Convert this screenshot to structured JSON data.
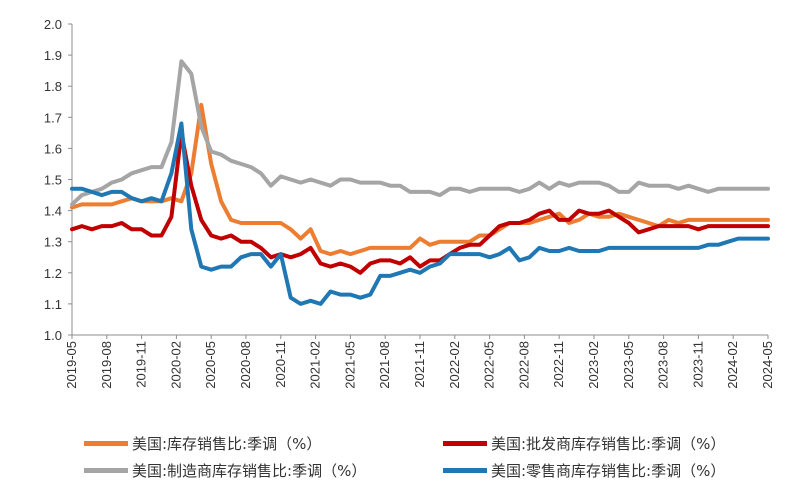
{
  "chart_data": {
    "type": "line",
    "ylim": [
      1.0,
      2.0
    ],
    "yticks": [
      "2.0",
      "1.9",
      "1.8",
      "1.7",
      "1.6",
      "1.5",
      "1.4",
      "1.3",
      "1.2",
      "1.1",
      "1.0"
    ],
    "x_start": "2019-05",
    "x_end": "2024-05",
    "xticks": [
      "2019-05",
      "2019-08",
      "2019-11",
      "2020-02",
      "2020-05",
      "2020-08",
      "2020-11",
      "2021-02",
      "2021-05",
      "2021-08",
      "2021-11",
      "2022-02",
      "2022-05",
      "2022-08",
      "2022-11",
      "2023-02",
      "2023-05",
      "2023-08",
      "2023-11",
      "2024-02",
      "2024-05"
    ],
    "grid": false,
    "legend_position": "bottom",
    "series": [
      {
        "name": "美国:库存销售比:季调（%）",
        "color": "#ED7D31",
        "values": [
          1.41,
          1.42,
          1.42,
          1.42,
          1.42,
          1.43,
          1.44,
          1.43,
          1.43,
          1.43,
          1.44,
          1.43,
          1.52,
          1.74,
          1.55,
          1.43,
          1.37,
          1.36,
          1.36,
          1.36,
          1.36,
          1.36,
          1.34,
          1.31,
          1.34,
          1.27,
          1.26,
          1.27,
          1.26,
          1.27,
          1.28,
          1.28,
          1.28,
          1.28,
          1.28,
          1.31,
          1.29,
          1.3,
          1.3,
          1.3,
          1.3,
          1.32,
          1.32,
          1.34,
          1.36,
          1.36,
          1.36,
          1.37,
          1.38,
          1.39,
          1.36,
          1.37,
          1.39,
          1.38,
          1.38,
          1.39,
          1.38,
          1.37,
          1.36,
          1.35,
          1.37,
          1.36,
          1.37,
          1.37,
          1.37,
          1.37,
          1.37,
          1.37,
          1.37,
          1.37,
          1.37
        ]
      },
      {
        "name": "美国:批发商库存销售比:季调（%）",
        "color": "#C00000",
        "values": [
          1.34,
          1.35,
          1.34,
          1.35,
          1.35,
          1.36,
          1.34,
          1.34,
          1.32,
          1.32,
          1.38,
          1.65,
          1.48,
          1.37,
          1.32,
          1.31,
          1.32,
          1.3,
          1.3,
          1.28,
          1.25,
          1.26,
          1.25,
          1.26,
          1.28,
          1.23,
          1.22,
          1.23,
          1.22,
          1.2,
          1.23,
          1.24,
          1.24,
          1.23,
          1.25,
          1.22,
          1.24,
          1.24,
          1.26,
          1.28,
          1.29,
          1.29,
          1.32,
          1.35,
          1.36,
          1.36,
          1.37,
          1.39,
          1.4,
          1.37,
          1.37,
          1.4,
          1.39,
          1.39,
          1.4,
          1.38,
          1.36,
          1.33,
          1.34,
          1.35,
          1.35,
          1.35,
          1.35,
          1.34,
          1.35,
          1.35,
          1.35,
          1.35,
          1.35,
          1.35,
          1.35
        ]
      },
      {
        "name": "美国:制造商库存销售比:季调（%）",
        "color": "#A5A5A5",
        "values": [
          1.42,
          1.45,
          1.46,
          1.47,
          1.49,
          1.5,
          1.52,
          1.53,
          1.54,
          1.54,
          1.62,
          1.88,
          1.84,
          1.67,
          1.59,
          1.58,
          1.56,
          1.55,
          1.54,
          1.52,
          1.48,
          1.51,
          1.5,
          1.49,
          1.5,
          1.49,
          1.48,
          1.5,
          1.5,
          1.49,
          1.49,
          1.49,
          1.48,
          1.48,
          1.46,
          1.46,
          1.46,
          1.45,
          1.47,
          1.47,
          1.46,
          1.47,
          1.47,
          1.47,
          1.47,
          1.46,
          1.47,
          1.49,
          1.47,
          1.49,
          1.48,
          1.49,
          1.49,
          1.49,
          1.48,
          1.46,
          1.46,
          1.49,
          1.48,
          1.48,
          1.48,
          1.47,
          1.48,
          1.47,
          1.46,
          1.47,
          1.47,
          1.47,
          1.47,
          1.47,
          1.47
        ]
      },
      {
        "name": "美国:零售商库存销售比:季调（%）",
        "color": "#1F77B4",
        "values": [
          1.47,
          1.47,
          1.46,
          1.45,
          1.46,
          1.46,
          1.44,
          1.43,
          1.44,
          1.43,
          1.52,
          1.68,
          1.34,
          1.22,
          1.21,
          1.22,
          1.22,
          1.25,
          1.26,
          1.26,
          1.22,
          1.26,
          1.12,
          1.1,
          1.11,
          1.1,
          1.14,
          1.13,
          1.13,
          1.12,
          1.13,
          1.19,
          1.19,
          1.2,
          1.21,
          1.2,
          1.22,
          1.23,
          1.26,
          1.26,
          1.26,
          1.26,
          1.25,
          1.26,
          1.28,
          1.24,
          1.25,
          1.28,
          1.27,
          1.27,
          1.28,
          1.27,
          1.27,
          1.27,
          1.28,
          1.28,
          1.28,
          1.28,
          1.28,
          1.28,
          1.28,
          1.28,
          1.28,
          1.28,
          1.29,
          1.29,
          1.3,
          1.31,
          1.31,
          1.31,
          1.31
        ]
      }
    ]
  },
  "legend": {
    "items": [
      {
        "label": "美国:库存销售比:季调（%）",
        "color": "#ED7D31"
      },
      {
        "label": "美国:批发商库存销售比:季调（%）",
        "color": "#C00000"
      },
      {
        "label": "美国:制造商库存销售比:季调（%）",
        "color": "#A5A5A5"
      },
      {
        "label": "美国:零售商库存销售比:季调（%）",
        "color": "#1F77B4"
      }
    ]
  }
}
